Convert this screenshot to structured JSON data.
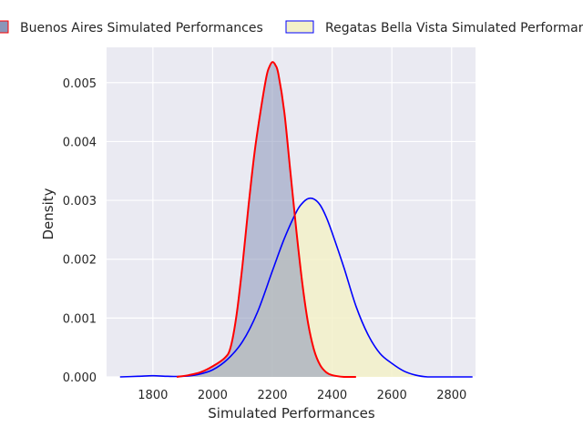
{
  "chart_data": {
    "type": "area",
    "title": "",
    "xlabel": "Simulated Performances",
    "ylabel": "Density",
    "xlim": [
      1645,
      2880
    ],
    "ylim": [
      0,
      0.0056
    ],
    "xticks": [
      1800,
      2000,
      2200,
      2400,
      2600,
      2800
    ],
    "yticks": [
      0.0,
      0.001,
      0.002,
      0.003,
      0.004,
      0.005
    ],
    "ytick_labels": [
      "0.000",
      "0.001",
      "0.002",
      "0.003",
      "0.004",
      "0.005"
    ],
    "grid": true,
    "background": "#eaeaf2",
    "legend_position": "top",
    "series": [
      {
        "name": "Buenos Aires Simulated Performances",
        "line_color": "#ff0000",
        "fill_color": "#8a96b9",
        "fill_opacity": 0.55,
        "x": [
          1880,
          1920,
          1960,
          2000,
          2040,
          2060,
          2080,
          2100,
          2120,
          2140,
          2160,
          2180,
          2190,
          2200,
          2210,
          2220,
          2240,
          2260,
          2280,
          2300,
          2320,
          2340,
          2360,
          2380,
          2400,
          2440,
          2480
        ],
        "y": [
          0.0,
          3e-05,
          8e-05,
          0.00018,
          0.00032,
          0.0005,
          0.00105,
          0.0019,
          0.0029,
          0.0038,
          0.0045,
          0.0051,
          0.00527,
          0.00535,
          0.0053,
          0.00515,
          0.0045,
          0.0035,
          0.0025,
          0.0016,
          0.0009,
          0.00045,
          0.0002,
          8e-05,
          3e-05,
          0.0,
          0.0
        ]
      },
      {
        "name": "Regatas Bella Vista Simulated Performances",
        "line_color": "#0000ff",
        "fill_color": "#f3f1c9",
        "fill_opacity": 0.85,
        "x": [
          1690,
          1750,
          1800,
          1850,
          1900,
          1950,
          2000,
          2050,
          2100,
          2150,
          2200,
          2240,
          2280,
          2300,
          2320,
          2340,
          2360,
          2380,
          2400,
          2440,
          2480,
          2520,
          2560,
          2600,
          2640,
          2680,
          2720,
          2760,
          2800,
          2870
        ],
        "y": [
          0.0,
          1e-05,
          2e-05,
          1e-05,
          1e-05,
          4e-05,
          0.00012,
          0.0003,
          0.0006,
          0.0011,
          0.0018,
          0.00235,
          0.0028,
          0.00295,
          0.00303,
          0.00302,
          0.00292,
          0.00272,
          0.00245,
          0.00185,
          0.0012,
          0.00072,
          0.0004,
          0.00023,
          0.0001,
          3e-05,
          0.0,
          0.0,
          0.0,
          0.0
        ]
      }
    ]
  }
}
